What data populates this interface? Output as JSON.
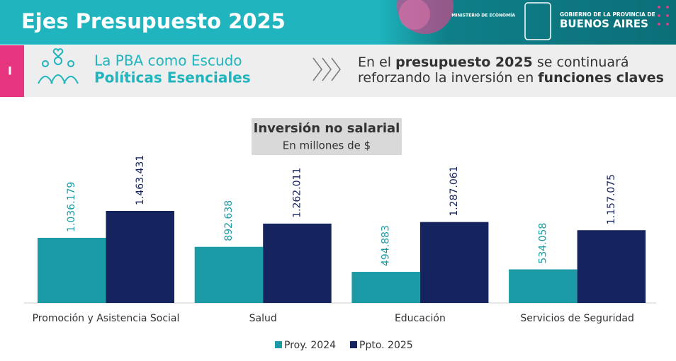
{
  "header": {
    "title": "Ejes Presupuesto 2025",
    "ministry": "MINISTERIO DE ECONOMÍA",
    "government": "GOBIERNO DE LA PROVINCIA DE",
    "province": "BUENOS AIRES"
  },
  "banner": {
    "tab": "I",
    "left_line1": "La PBA como Escudo",
    "left_line2": "Políticas Esenciales",
    "right_line1": [
      "En el",
      "presupuesto 2025",
      "se continuará"
    ],
    "right_line2": [
      "reforzando la inversión en",
      "funciones claves"
    ]
  },
  "chart_data": {
    "type": "bar",
    "title": "Inversión no salarial",
    "subtitle": "En millones de $",
    "categories": [
      "Promoción y Asistencia Social",
      "Salud",
      "Educación",
      "Servicios de Seguridad"
    ],
    "series": [
      {
        "name": "Proy. 2024",
        "color": "#1a9ba6",
        "values": [
          1036179,
          892638,
          494883,
          534058
        ],
        "value_labels": [
          "1.036.179",
          "892.638",
          "494.883",
          "534.058"
        ]
      },
      {
        "name": "Ppto. 2025",
        "color": "#15235e",
        "values": [
          1463431,
          1262011,
          1287061,
          1157075
        ],
        "value_labels": [
          "1.463.431",
          "1.262.011",
          "1.287.061",
          "1.157.075"
        ]
      }
    ],
    "legend": "bottom"
  }
}
